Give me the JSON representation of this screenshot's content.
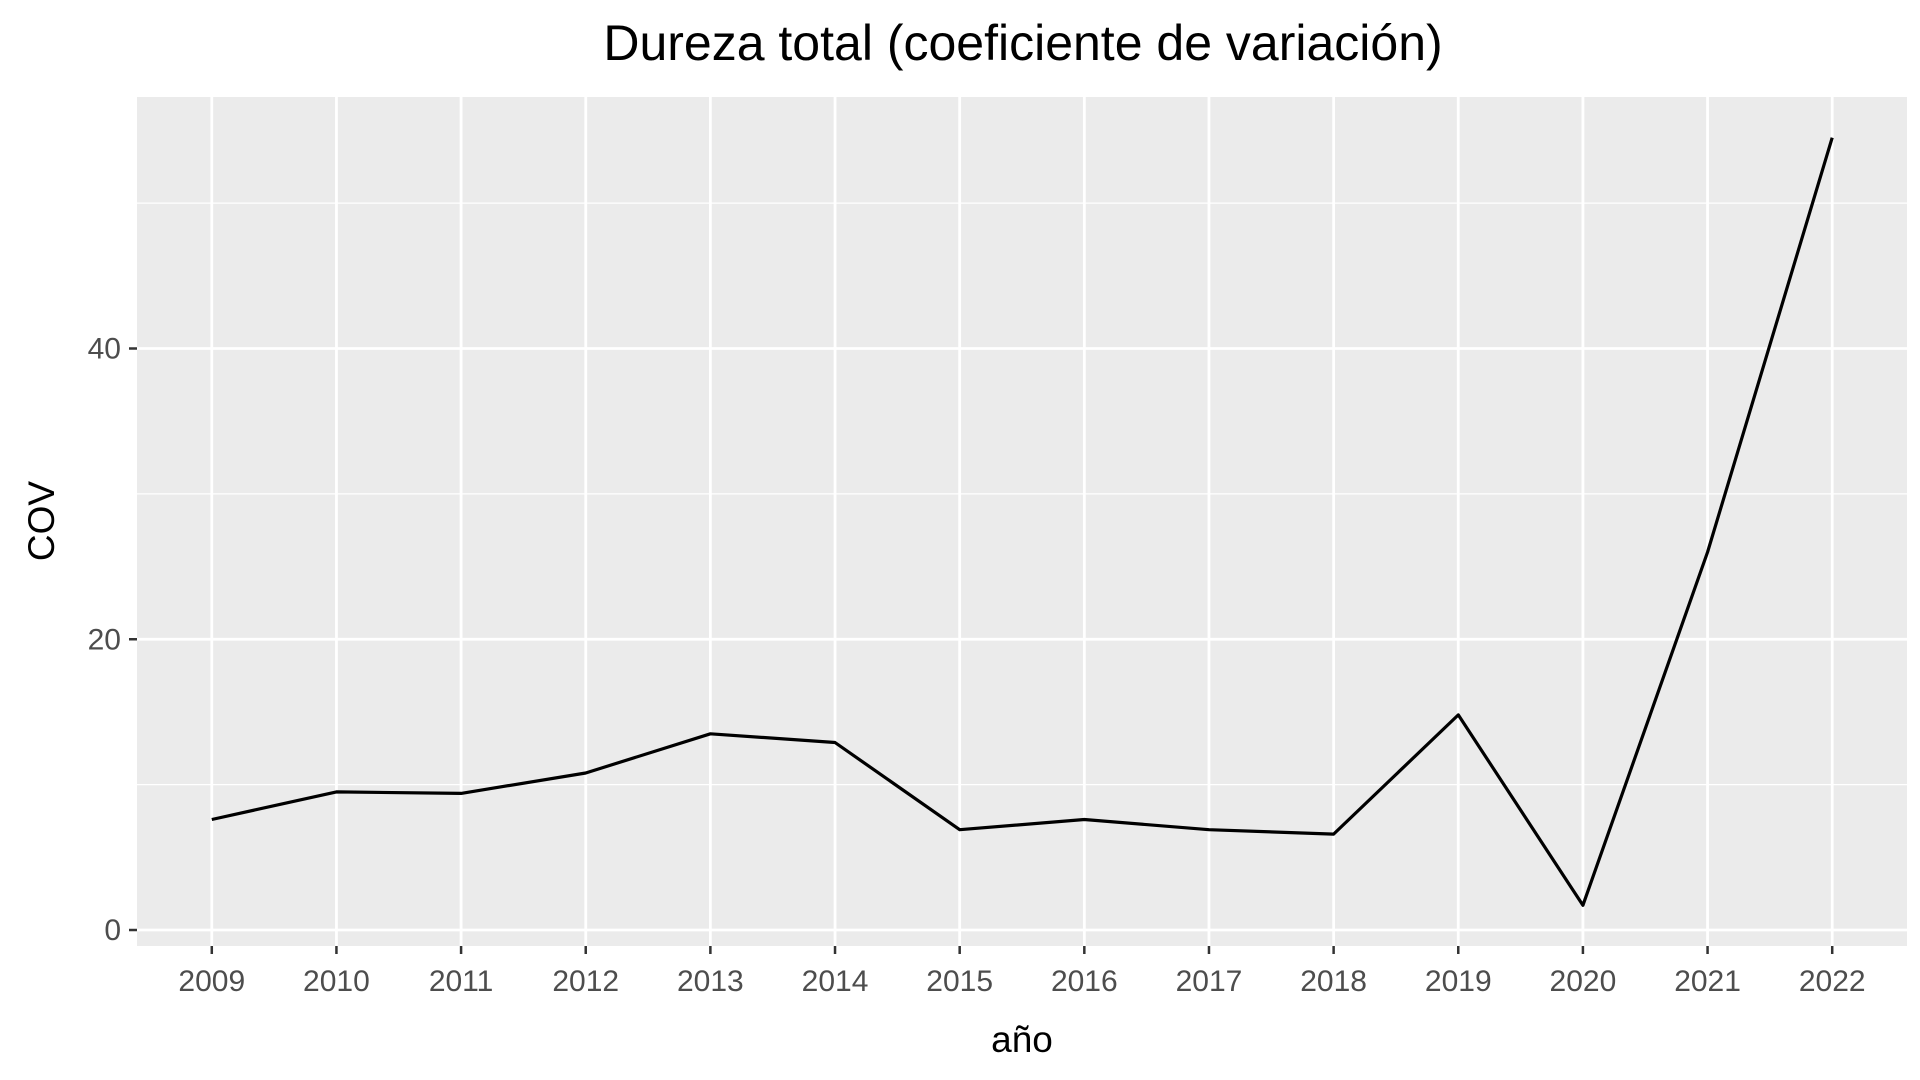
{
  "chart_data": {
    "type": "line",
    "title": "Dureza total (coeficiente de variación)",
    "xlabel": "año",
    "ylabel": "COV",
    "x": [
      "2009",
      "2010",
      "2011",
      "2012",
      "2013",
      "2014",
      "2015",
      "2016",
      "2017",
      "2018",
      "2019",
      "2020",
      "2021",
      "2022"
    ],
    "series": [
      {
        "values": [
          7.6,
          9.5,
          9.4,
          10.8,
          13.5,
          12.9,
          6.9,
          7.6,
          6.9,
          6.6,
          14.8,
          1.7,
          26.0,
          54.5
        ]
      }
    ],
    "yticks": [
      0,
      20,
      40
    ],
    "ylim": [
      -1.1,
      57.3
    ],
    "grid": true,
    "legend": "none",
    "colors": {
      "panel": "#ebebeb",
      "grid": "#ffffff",
      "line": "#000000",
      "tick": "#333333"
    }
  }
}
